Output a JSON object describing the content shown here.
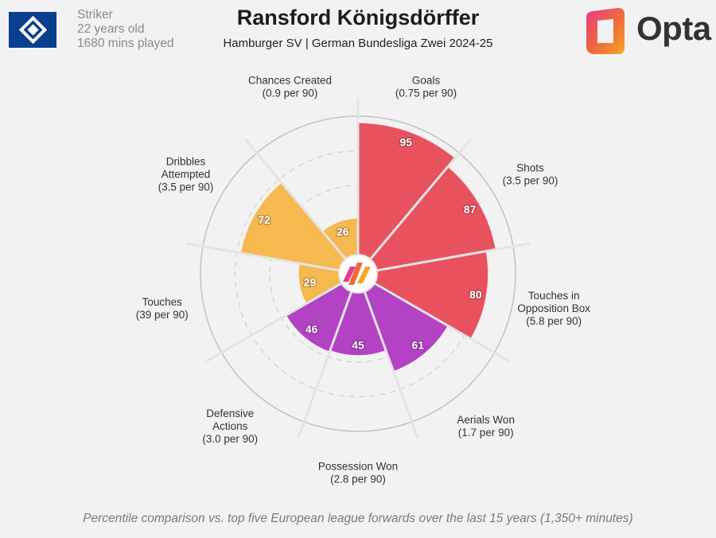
{
  "player": {
    "name": "Ransford Königsdörffer",
    "position": "Striker",
    "age": "22 years old",
    "minutes": "1680 mins played",
    "subtitle": "Hamburger SV | German Bundesliga Zwei 2024-25"
  },
  "brand": {
    "name": "Opta"
  },
  "footnote": "Percentile comparison vs. top five European league forwards over the last 15 years (1,350+ minutes)",
  "chart_data": {
    "type": "radar",
    "value_range": [
      0,
      100
    ],
    "series": [
      {
        "metric": "Goals",
        "per90": "(0.75 per 90)",
        "value": 95,
        "color": "#e8525f"
      },
      {
        "metric": "Shots",
        "per90": "(3.5 per 90)",
        "value": 87,
        "color": "#e8525f"
      },
      {
        "metric": "Touches in Opposition Box",
        "per90": "(5.8 per 90)",
        "value": 80,
        "color": "#e8525f"
      },
      {
        "metric": "Aerials Won",
        "per90": "(1.7 per 90)",
        "value": 61,
        "color": "#b342c4"
      },
      {
        "metric": "Possession Won",
        "per90": "(2.8 per 90)",
        "value": 45,
        "color": "#b342c4"
      },
      {
        "metric": "Defensive Actions",
        "per90": "(3.0 per 90)",
        "value": 46,
        "color": "#b342c4"
      },
      {
        "metric": "Touches",
        "per90": "(39 per 90)",
        "value": 29,
        "color": "#f5b94f"
      },
      {
        "metric": "Dribbles Attempted",
        "per90": "(3.5 per 90)",
        "value": 72,
        "color": "#f5b94f"
      },
      {
        "metric": "Chances Created",
        "per90": "(0.9 per 90)",
        "value": 26,
        "color": "#f5b94f"
      }
    ],
    "label_lines": [
      [
        "Goals",
        "(0.75 per 90)"
      ],
      [
        "Shots",
        "(3.5 per 90)"
      ],
      [
        "Touches in",
        "Opposition Box",
        "(5.8 per 90)"
      ],
      [
        "Aerials Won",
        "(1.7 per 90)"
      ],
      [
        "Possession Won",
        "(2.8 per 90)"
      ],
      [
        "Defensive",
        "Actions",
        "(3.0 per 90)"
      ],
      [
        "Touches",
        "(39 per 90)"
      ],
      [
        "Dribbles",
        "Attempted",
        "(3.5 per 90)"
      ],
      [
        "Chances Created",
        "(0.9 per 90)"
      ]
    ]
  }
}
